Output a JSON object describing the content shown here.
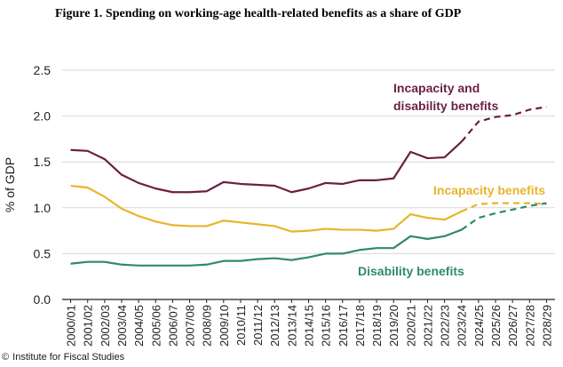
{
  "figure_title": "Figure 1. Spending on working-age health-related benefits as a share of GDP",
  "source": {
    "icon": "copyright-icon",
    "symbol": "©",
    "text": "Institute for Fiscal Studies"
  },
  "colors": {
    "incapacity_and_disability": "#6b1f45",
    "incapacity": "#e8b42a",
    "disability": "#2e8b6a",
    "axis": "#222222",
    "grid": "#d9d9d9"
  },
  "chart_data": {
    "type": "line",
    "title": "",
    "xlabel": "",
    "ylabel": "% of GDP",
    "ylim": [
      0,
      2.5
    ],
    "yticks": [
      "0.0",
      "0.5",
      "1.0",
      "1.5",
      "2.0",
      "2.5"
    ],
    "grid": "horizontal",
    "x": [
      "2000/01",
      "2001/02",
      "2002/03",
      "2003/04",
      "2004/05",
      "2005/06",
      "2006/07",
      "2007/08",
      "2008/09",
      "2009/10",
      "2010/11",
      "2011/12",
      "2012/13",
      "2013/14",
      "2014/15",
      "2015/16",
      "2016/17",
      "2017/18",
      "2018/19",
      "2019/20",
      "2020/21",
      "2021/22",
      "2022/23",
      "2023/24",
      "2024/25",
      "2025/26",
      "2026/27",
      "2027/28",
      "2028/29"
    ],
    "forecast_start": "2023/24",
    "series": [
      {
        "name": "Incapacity and disability benefits",
        "label_lines": [
          "Incapacity and",
          "disability benefits"
        ],
        "color_key": "incapacity_and_disability",
        "values": [
          1.63,
          1.62,
          1.53,
          1.36,
          1.27,
          1.21,
          1.17,
          1.17,
          1.18,
          1.28,
          1.26,
          1.25,
          1.24,
          1.17,
          1.21,
          1.27,
          1.26,
          1.3,
          1.3,
          1.32,
          1.61,
          1.54,
          1.55,
          1.72,
          1.94,
          1.99,
          2.01,
          2.07,
          2.1
        ]
      },
      {
        "name": "Incapacity benefits",
        "label_lines": [
          "Incapacity benefits"
        ],
        "color_key": "incapacity",
        "values": [
          1.24,
          1.22,
          1.12,
          0.99,
          0.91,
          0.85,
          0.81,
          0.8,
          0.8,
          0.86,
          0.84,
          0.82,
          0.8,
          0.74,
          0.75,
          0.77,
          0.76,
          0.76,
          0.75,
          0.77,
          0.93,
          0.89,
          0.87,
          0.96,
          1.04,
          1.05,
          1.05,
          1.05,
          1.04
        ]
      },
      {
        "name": "Disability benefits",
        "label_lines": [
          "Disability benefits"
        ],
        "color_key": "disability",
        "values": [
          0.39,
          0.41,
          0.41,
          0.38,
          0.37,
          0.37,
          0.37,
          0.37,
          0.38,
          0.42,
          0.42,
          0.44,
          0.45,
          0.43,
          0.46,
          0.5,
          0.5,
          0.54,
          0.56,
          0.56,
          0.69,
          0.66,
          0.69,
          0.76,
          0.89,
          0.94,
          0.98,
          1.02,
          1.05
        ]
      }
    ]
  }
}
